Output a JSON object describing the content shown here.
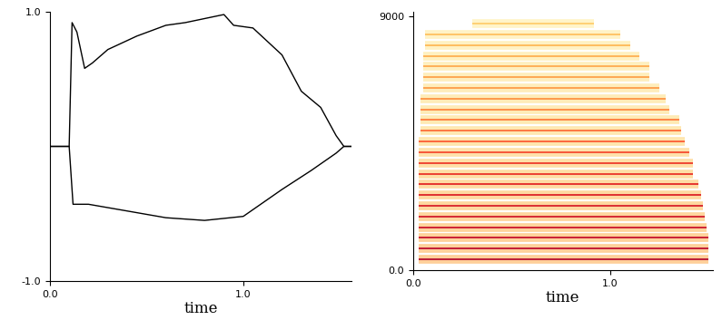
{
  "chart_data": [
    {
      "type": "line",
      "xlabel": "time",
      "xlim": [
        0,
        1.56
      ],
      "ylim": [
        -1,
        1
      ],
      "xticks": [
        {
          "value": 0,
          "label": "0.0"
        },
        {
          "value": 1,
          "label": "1.0"
        }
      ],
      "yticks": [
        {
          "value": -1,
          "label": "-1.0"
        },
        {
          "value": 1,
          "label": "1.0"
        }
      ],
      "grid": false,
      "series": [
        {
          "color": "#000000",
          "x": [
            0,
            0.1,
            0.115,
            0.14,
            0.18,
            0.22,
            0.3,
            0.45,
            0.6,
            0.7,
            0.8,
            0.9,
            0.95,
            1.05,
            1.2,
            1.3,
            1.4,
            1.48,
            1.52,
            1.56
          ],
          "values": [
            0,
            0,
            0.92,
            0.85,
            0.58,
            0.62,
            0.72,
            0.82,
            0.9,
            0.92,
            0.95,
            0.98,
            0.9,
            0.88,
            0.68,
            0.41,
            0.29,
            0.08,
            0,
            0
          ]
        },
        {
          "color": "#000000",
          "x": [
            0,
            0.1,
            0.12,
            0.2,
            0.4,
            0.6,
            0.8,
            1.0,
            1.1,
            1.2,
            1.35,
            1.48,
            1.52,
            1.56
          ],
          "values": [
            0,
            0,
            -0.43,
            -0.43,
            -0.48,
            -0.53,
            -0.55,
            -0.52,
            -0.42,
            -0.32,
            -0.18,
            -0.05,
            0,
            0
          ]
        }
      ]
    },
    {
      "type": "spectrogram",
      "xlabel": "time",
      "xlim": [
        0,
        1.52
      ],
      "ylim": [
        0,
        9160
      ],
      "xticks": [
        {
          "value": 0,
          "label": "0.0"
        },
        {
          "value": 1,
          "label": "1.0"
        }
      ],
      "yticks": [
        {
          "value": 0,
          "label": "0.0"
        },
        9000
      ],
      "grid": false,
      "harmonics": {
        "frequency": [
          380,
          760,
          1140,
          1520,
          1900,
          2280,
          2660,
          3040,
          3420,
          3800,
          4180,
          4560,
          4940,
          5320,
          5700,
          6080,
          6460,
          6840,
          7220,
          7600,
          7980,
          8360,
          8740
        ],
        "start": [
          0.03,
          0.03,
          0.03,
          0.03,
          0.03,
          0.03,
          0.03,
          0.03,
          0.03,
          0.03,
          0.03,
          0.03,
          0.04,
          0.04,
          0.04,
          0.04,
          0.05,
          0.05,
          0.05,
          0.05,
          0.06,
          0.06,
          0.3
        ],
        "end": [
          1.5,
          1.5,
          1.5,
          1.49,
          1.48,
          1.47,
          1.46,
          1.45,
          1.42,
          1.42,
          1.4,
          1.38,
          1.36,
          1.35,
          1.3,
          1.28,
          1.25,
          1.2,
          1.2,
          1.15,
          1.1,
          1.05,
          0.92
        ],
        "intensity": [
          0.9,
          0.88,
          0.86,
          0.84,
          0.82,
          0.8,
          0.78,
          0.75,
          0.72,
          0.7,
          0.66,
          0.62,
          0.58,
          0.55,
          0.52,
          0.5,
          0.47,
          0.45,
          0.42,
          0.4,
          0.37,
          0.34,
          0.3
        ]
      }
    }
  ]
}
